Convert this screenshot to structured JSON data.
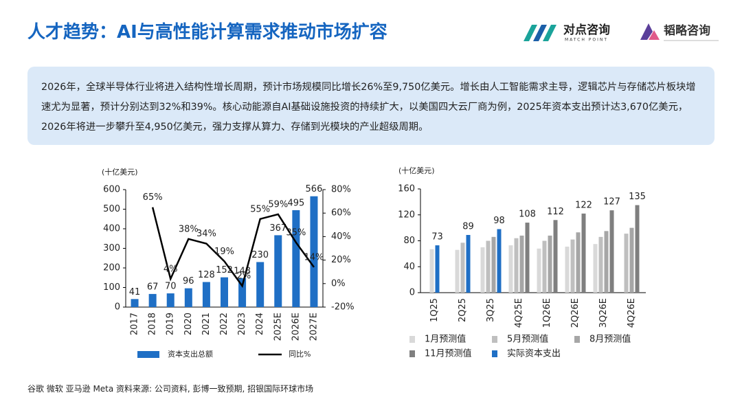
{
  "header": {
    "title": "人才趋势：AI与高性能计算需求推动市场扩容",
    "logos": [
      "对点咨询",
      "MATCH POINT",
      "韬略咨询"
    ]
  },
  "summary": "2026年，全球半导体行业将进入结构性增长周期，预计市场规模同比增长26%至9,750亿美元。增长由人工智能需求主导，逻辑芯片与存储芯片板块增速尤为显著，预计分别达到32%和39%。核心动能源自AI基础设施投资的持续扩大，以美国四大云厂商为例，2025年资本支出预计达3,670亿美元，2026年将进一步攀升至4,950亿美元，强力支撑从算力、存储到光模块的产业超级周期。",
  "footer": "谷歌 微软 亚马逊 Meta 资料来源: 公司资料, 彭博一致预期, 招银国际环球市场",
  "chart_data": [
    {
      "type": "combo",
      "unit": "(十亿美元)",
      "categories": [
        "2017",
        "2018",
        "2019",
        "2020",
        "2021",
        "2022",
        "2023",
        "2024",
        "2025E",
        "2026E",
        "2027E"
      ],
      "series": [
        {
          "name": "资本支出总额",
          "color": "#1f6fc5",
          "values": [
            41,
            67,
            70,
            96,
            128,
            152,
            148,
            230,
            367,
            495,
            566
          ]
        },
        {
          "name": "同比%",
          "color": "#000000",
          "axis": "y2",
          "values": [
            null,
            65,
            4,
            38,
            34,
            19,
            -2,
            55,
            59,
            35,
            14
          ],
          "value_labels": [
            null,
            "65%",
            "4%",
            "38%",
            "34%",
            "19%",
            "-2%",
            "55%",
            "59%",
            "35%",
            "14%"
          ]
        }
      ],
      "ylim": [
        0,
        600
      ],
      "yticks": [
        0,
        100,
        200,
        300,
        400,
        500,
        600
      ],
      "y2lim": [
        -20,
        80
      ],
      "y2ticks": [
        {
          "value": -20,
          "label": "-20%"
        },
        {
          "value": 0,
          "label": "0%"
        },
        {
          "value": 20,
          "label": "20%"
        },
        {
          "value": 40,
          "label": "40%"
        },
        {
          "value": 60,
          "label": "60%"
        },
        {
          "value": 80,
          "label": "80%"
        }
      ]
    },
    {
      "type": "bar",
      "unit": "(十亿美元)",
      "categories": [
        "1Q25",
        "2Q25",
        "3Q25",
        "4Q25E",
        "1Q26E",
        "2Q26E",
        "3Q26E",
        "4Q26E"
      ],
      "series": [
        {
          "name": "1月预测值",
          "color": "#d9d9d9",
          "values": [
            67,
            66,
            70,
            73,
            68,
            71,
            75,
            null
          ]
        },
        {
          "name": "5月预测值",
          "color": "#bfbfbf",
          "values": [
            null,
            77,
            80,
            84,
            80,
            82,
            86,
            91
          ]
        },
        {
          "name": "8月预测值",
          "color": "#a6a6a6",
          "values": [
            null,
            null,
            86,
            88,
            88,
            93,
            95,
            100
          ]
        },
        {
          "name": "11月预测值",
          "color": "#7f7f7f",
          "values": [
            null,
            null,
            null,
            108,
            112,
            122,
            127,
            135
          ]
        },
        {
          "name": "实际资本支出",
          "color": "#1f6fc5",
          "values": [
            73,
            89,
            98,
            null,
            null,
            null,
            null,
            null
          ]
        }
      ],
      "ylim": [
        0,
        160
      ],
      "yticks": [
        0,
        40,
        80,
        120,
        160
      ]
    }
  ]
}
